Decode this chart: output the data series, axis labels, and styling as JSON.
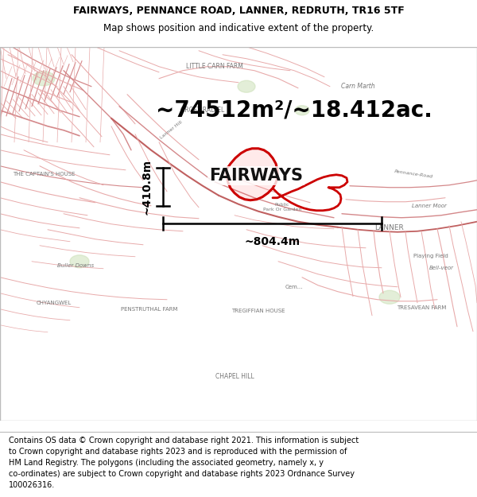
{
  "title_line1": "FAIRWAYS, PENNANCE ROAD, LANNER, REDRUTH, TR16 5TF",
  "title_line2": "Map shows position and indicative extent of the property.",
  "area_text": "~74512m²/~18.412ac.",
  "label_fairways": "FAIRWAYS",
  "dim_vertical": "~410.8m",
  "dim_horizontal": "~804.4m",
  "footer_text": "Contains OS data © Crown copyright and database right 2021. This information is subject to Crown copyright and database rights 2023 and is reproduced with the permission of\nHM Land Registry. The polygons (including the associated geometry, namely x, y co-ordinates) are subject to Crown copyright and database rights 2023 Ordnance Survey\n100026316.",
  "bg_color": "#ffffff",
  "title_fontsize": 9,
  "subtitle_fontsize": 8.5,
  "area_fontsize": 20,
  "label_fontsize": 15,
  "dim_fontsize": 10,
  "footer_fontsize": 7,
  "title_color": "#000000",
  "border_color": "#bbbbbb",
  "property_outline_color": "#cc0000",
  "dim_line_color": "#000000",
  "map_bg": "#fdf5f5",
  "road_color1": "#d4888a",
  "road_color2": "#e8aaaa",
  "road_color3": "#c06060"
}
